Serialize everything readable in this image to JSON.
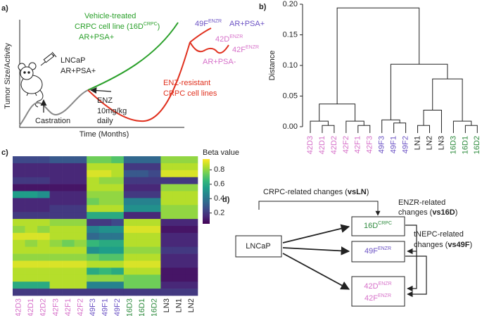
{
  "panel_a": {
    "label": "a)",
    "y_axis": "Tumor Size/Activity",
    "x_axis": "Time (Months)",
    "lncap": [
      "LNCaP",
      "AR+PSA+"
    ],
    "castration": "Castration",
    "enz": [
      "ENZ",
      "10mg/kg",
      "daily"
    ],
    "vehicle": {
      "line1": "Vehicle-treated",
      "line2": "CRPC cell line (16D",
      "line2_sup": "CRPC",
      "line2_end": ")",
      "line3": "AR+PSA+"
    },
    "f49": {
      "name": "49F",
      "sup": "ENZR",
      "marker": "AR+PSA+"
    },
    "f42d": {
      "name": "42D",
      "sup": "ENZR"
    },
    "f42f": {
      "name": "42F",
      "sup": "ENZR"
    },
    "marker42": "AR+PSA-",
    "resistant": [
      "ENZ-resistant",
      "CRPC cell lines"
    ]
  },
  "panel_b": {
    "type": "dendrogram",
    "label": "b)",
    "ylabel": "Distance",
    "ylim": [
      0,
      0.2
    ],
    "yticks": [
      {
        "value": 0,
        "label": "0.00"
      },
      {
        "value": 0.05,
        "label": "0.05"
      },
      {
        "value": 0.1,
        "label": "0.10"
      },
      {
        "value": 0.15,
        "label": "0.15"
      },
      {
        "value": 0.2,
        "label": "0.20"
      }
    ],
    "leaves": [
      "42D3",
      "42D1",
      "42D2",
      "42F2",
      "42F1",
      "42F3",
      "49F3",
      "49F1",
      "49F2",
      "LN1",
      "LN2",
      "LN3",
      "16D3",
      "16D1",
      "16D2"
    ],
    "leaf_colors": [
      "#d670c9",
      "#d670c9",
      "#d670c9",
      "#d670c9",
      "#d670c9",
      "#d670c9",
      "#6b52c4",
      "#6b52c4",
      "#6b52c4",
      "#222222",
      "#222222",
      "#222222",
      "#2e8b3e",
      "#2e8b3e",
      "#2e8b3e"
    ],
    "merges": [
      {
        "left": 1,
        "right": 2,
        "height": 0.002
      },
      {
        "left": 0,
        "right": 15,
        "height": 0.009
      },
      {
        "left": 4,
        "right": 5,
        "height": 0.002
      },
      {
        "left": 3,
        "right": 17,
        "height": 0.009
      },
      {
        "left": 16,
        "right": 18,
        "height": 0.037
      },
      {
        "left": 7,
        "right": 8,
        "height": 0.006
      },
      {
        "left": 6,
        "right": 20,
        "height": 0.011
      },
      {
        "left": 9,
        "right": 10,
        "height": 0.002
      },
      {
        "left": 22,
        "right": 11,
        "height": 0.027
      },
      {
        "left": 13,
        "right": 14,
        "height": 0.002
      },
      {
        "left": 12,
        "right": 24,
        "height": 0.009
      },
      {
        "left": 23,
        "right": 25,
        "height": 0.078
      },
      {
        "left": 21,
        "right": 26,
        "height": 0.102
      },
      {
        "left": 19,
        "right": 27,
        "height": 0.194
      }
    ]
  },
  "panel_c": {
    "type": "heatmap",
    "label": "c)",
    "colorbar_label": "Beta value",
    "clim": [
      0.05,
      0.95
    ],
    "colorbar_ticks": [
      0.2,
      0.4,
      0.6,
      0.8
    ],
    "colormap": [
      "#440154",
      "#482878",
      "#3e4989",
      "#31688e",
      "#26828e",
      "#1f9e89",
      "#35b779",
      "#6ece58",
      "#b5de2b",
      "#fde725"
    ],
    "columns": [
      "42D3",
      "42D1",
      "42D2",
      "42F3",
      "42F1",
      "42F2",
      "49F3",
      "49F1",
      "49F2",
      "16D3",
      "16D1",
      "16D2",
      "LN3",
      "LN1",
      "LN2"
    ],
    "label_colors": [
      "#d670c9",
      "#d670c9",
      "#d670c9",
      "#d670c9",
      "#d670c9",
      "#d670c9",
      "#6b52c4",
      "#6b52c4",
      "#6b52c4",
      "#2e8b3e",
      "#2e8b3e",
      "#2e8b3e",
      "#222222",
      "#222222",
      "#222222"
    ],
    "values": [
      [
        0.25,
        0.25,
        0.25,
        0.3,
        0.3,
        0.3,
        0.75,
        0.75,
        0.7,
        0.35,
        0.35,
        0.35,
        0.8,
        0.8,
        0.8
      ],
      [
        0.15,
        0.15,
        0.15,
        0.15,
        0.15,
        0.15,
        0.85,
        0.85,
        0.85,
        0.2,
        0.2,
        0.2,
        0.85,
        0.85,
        0.85
      ],
      [
        0.15,
        0.15,
        0.15,
        0.15,
        0.15,
        0.15,
        0.9,
        0.9,
        0.85,
        0.3,
        0.3,
        0.25,
        0.9,
        0.9,
        0.9
      ],
      [
        0.2,
        0.2,
        0.2,
        0.15,
        0.15,
        0.15,
        0.85,
        0.8,
        0.8,
        0.2,
        0.2,
        0.2,
        0.2,
        0.2,
        0.2
      ],
      [
        0.1,
        0.1,
        0.1,
        0.1,
        0.1,
        0.1,
        0.85,
        0.85,
        0.85,
        0.15,
        0.15,
        0.15,
        0.8,
        0.8,
        0.8
      ],
      [
        0.55,
        0.55,
        0.5,
        0.15,
        0.15,
        0.15,
        0.8,
        0.8,
        0.8,
        0.2,
        0.2,
        0.2,
        0.85,
        0.85,
        0.85
      ],
      [
        0.15,
        0.15,
        0.15,
        0.15,
        0.15,
        0.15,
        0.75,
        0.8,
        0.8,
        0.45,
        0.45,
        0.45,
        0.85,
        0.85,
        0.85
      ],
      [
        0.15,
        0.15,
        0.15,
        0.2,
        0.2,
        0.2,
        0.85,
        0.85,
        0.85,
        0.5,
        0.5,
        0.5,
        0.8,
        0.8,
        0.8
      ],
      [
        0.2,
        0.2,
        0.2,
        0.2,
        0.2,
        0.2,
        0.6,
        0.6,
        0.6,
        0.15,
        0.15,
        0.15,
        0.8,
        0.8,
        0.8
      ],
      [
        0.85,
        0.85,
        0.85,
        0.8,
        0.8,
        0.8,
        0.2,
        0.2,
        0.25,
        0.85,
        0.85,
        0.85,
        0.15,
        0.15,
        0.15
      ],
      [
        0.8,
        0.85,
        0.8,
        0.85,
        0.85,
        0.85,
        0.45,
        0.5,
        0.5,
        0.9,
        0.9,
        0.9,
        0.1,
        0.1,
        0.1
      ],
      [
        0.9,
        0.9,
        0.9,
        0.85,
        0.85,
        0.85,
        0.35,
        0.4,
        0.4,
        0.85,
        0.85,
        0.85,
        0.15,
        0.15,
        0.15
      ],
      [
        0.85,
        0.8,
        0.85,
        0.8,
        0.75,
        0.8,
        0.65,
        0.6,
        0.6,
        0.85,
        0.85,
        0.85,
        0.15,
        0.15,
        0.15
      ],
      [
        0.85,
        0.85,
        0.85,
        0.85,
        0.85,
        0.85,
        0.5,
        0.55,
        0.55,
        0.8,
        0.8,
        0.8,
        0.2,
        0.2,
        0.2
      ],
      [
        0.8,
        0.8,
        0.8,
        0.8,
        0.8,
        0.8,
        0.75,
        0.7,
        0.7,
        0.85,
        0.85,
        0.85,
        0.15,
        0.15,
        0.15
      ],
      [
        0.9,
        0.9,
        0.9,
        0.9,
        0.9,
        0.9,
        0.85,
        0.85,
        0.85,
        0.9,
        0.9,
        0.9,
        0.15,
        0.15,
        0.15
      ],
      [
        0.85,
        0.85,
        0.85,
        0.85,
        0.85,
        0.85,
        0.6,
        0.65,
        0.6,
        0.85,
        0.85,
        0.85,
        0.1,
        0.1,
        0.1
      ],
      [
        0.85,
        0.85,
        0.85,
        0.85,
        0.85,
        0.85,
        0.8,
        0.8,
        0.8,
        0.75,
        0.75,
        0.75,
        0.1,
        0.1,
        0.1
      ],
      [
        0.6,
        0.6,
        0.6,
        0.85,
        0.85,
        0.85,
        0.45,
        0.45,
        0.45,
        0.75,
        0.75,
        0.75,
        0.15,
        0.15,
        0.15
      ],
      [
        0.2,
        0.2,
        0.2,
        0.2,
        0.2,
        0.2,
        0.2,
        0.2,
        0.2,
        0.2,
        0.2,
        0.2,
        0.2,
        0.2,
        0.2
      ]
    ]
  },
  "panel_d": {
    "label": "d)",
    "crpc": {
      "text": "CRPC-related changes (",
      "bold": "vsLN",
      "end": ")"
    },
    "enzr": {
      "line1": "ENZR-related",
      "line2": "changes (",
      "bold": "vs16D",
      "end": ")"
    },
    "tnepc": {
      "line1": "tNEPC-related",
      "line2": "changes (",
      "bold": "vs49F",
      "end": ")"
    },
    "lncap": "LNCaP",
    "crpc16d": {
      "name": "16D",
      "sup": "CRPC"
    },
    "enzr49f": {
      "name": "49F",
      "sup": "ENZR"
    },
    "enzr42d": {
      "name": "42D",
      "sup": "ENZR"
    },
    "enzr42f": {
      "name": "42F",
      "sup": "ENZR"
    }
  }
}
